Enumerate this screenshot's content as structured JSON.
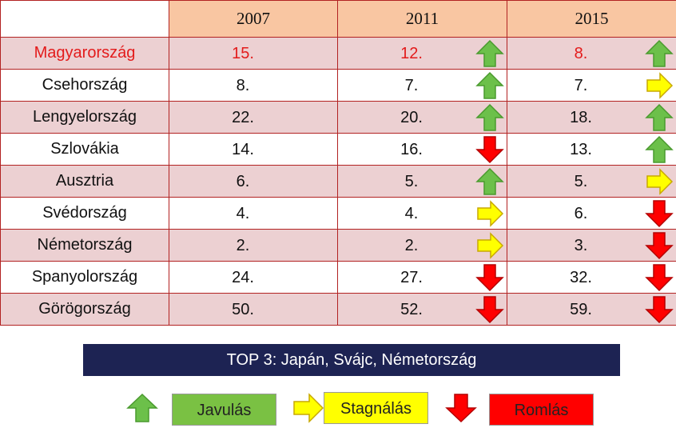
{
  "chart_data": {
    "type": "table",
    "columns": [
      "",
      "2007",
      "2011",
      "2015"
    ],
    "rows": [
      {
        "country": "Magyarország",
        "values": [
          "15.",
          "12.",
          "8."
        ],
        "trends": [
          "",
          "up",
          "up"
        ],
        "highlight": true
      },
      {
        "country": "Csehország",
        "values": [
          "8.",
          "7.",
          "7."
        ],
        "trends": [
          "",
          "up",
          "flat"
        ]
      },
      {
        "country": "Lengyelország",
        "values": [
          "22.",
          "20.",
          "18."
        ],
        "trends": [
          "",
          "up",
          "up"
        ]
      },
      {
        "country": "Szlovákia",
        "values": [
          "14.",
          "16.",
          "13."
        ],
        "trends": [
          "",
          "down",
          "up"
        ]
      },
      {
        "country": "Ausztria",
        "values": [
          "6.",
          "5.",
          "5."
        ],
        "trends": [
          "",
          "up",
          "flat"
        ]
      },
      {
        "country": "Svédország",
        "values": [
          "4.",
          "4.",
          "6."
        ],
        "trends": [
          "",
          "flat",
          "down"
        ]
      },
      {
        "country": "Németország",
        "values": [
          "2.",
          "2.",
          "3."
        ],
        "trends": [
          "",
          "flat",
          "down"
        ]
      },
      {
        "country": "Spanyolország",
        "values": [
          "24.",
          "27.",
          "32."
        ],
        "trends": [
          "",
          "down",
          "down"
        ]
      },
      {
        "country": "Görögország",
        "values": [
          "50.",
          "52.",
          "59."
        ],
        "trends": [
          "",
          "down",
          "down"
        ]
      }
    ]
  },
  "banner": {
    "text": "TOP 3: Japán, Svájc, Németország"
  },
  "legend": {
    "up": {
      "label": "Javulás",
      "color": "#7ac143"
    },
    "flat": {
      "label": "Stagnálás",
      "color": "#ffff00"
    },
    "down": {
      "label": "Romlás",
      "color": "#ff0000"
    }
  },
  "colors": {
    "header_bg": "#f9c6a2",
    "row_shade": "#ecd0d2",
    "highlight_text": "#e31b1b",
    "banner_bg": "#1d2353",
    "arrow_up": "#6cc04a",
    "arrow_flat": "#ffff00",
    "arrow_down": "#ff0000"
  }
}
